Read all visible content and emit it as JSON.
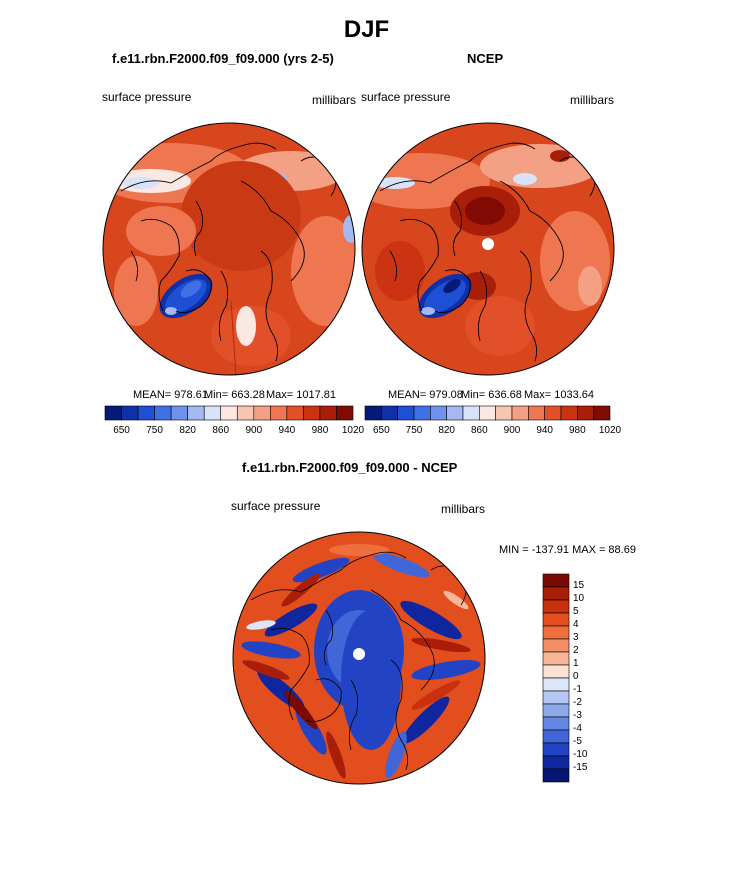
{
  "figure": {
    "title": "DJF"
  },
  "panels": [
    {
      "title": "f.e11.rbn.F2000.f09_f09.000 (yrs 2-5)",
      "variable": "surface pressure",
      "units": "millibars",
      "stats": {
        "mean": "MEAN= 978.61",
        "min": "Min= 663.28",
        "max": "Max= 1017.81"
      }
    },
    {
      "title": "NCEP",
      "variable": "surface pressure",
      "units": "millibars",
      "stats": {
        "mean": "MEAN= 979.08",
        "min": "Min= 636.68",
        "max": "Max= 1033.64"
      }
    }
  ],
  "colorbar_horizontal": {
    "tick_labels": [
      "650",
      "750",
      "820",
      "860",
      "900",
      "940",
      "980",
      "1020"
    ],
    "colors": [
      "#061a78",
      "#1030a8",
      "#1f4fd4",
      "#3f70e6",
      "#6f93ec",
      "#a4b8f2",
      "#d8e2f8",
      "#fbe8e2",
      "#f7c6b2",
      "#f3a084",
      "#ee7650",
      "#e2502a",
      "#cc3312",
      "#a81e08",
      "#820a04"
    ]
  },
  "difference_panel": {
    "title": "f.e11.rbn.F2000.f09_f09.000 - NCEP",
    "variable": "surface pressure",
    "units": "millibars",
    "minmax": "MIN = -137.91 MAX =  88.69"
  },
  "colorbar_vertical": {
    "tick_labels": [
      "15",
      "10",
      "5",
      "4",
      "3",
      "2",
      "1",
      "0",
      "-1",
      "-2",
      "-3",
      "-4",
      "-5",
      "-10",
      "-15"
    ],
    "colors": [
      "#7a0a04",
      "#a81e08",
      "#c8300e",
      "#e24e1e",
      "#ee6e3c",
      "#f49068",
      "#f8b698",
      "#fce2d6",
      "#dde6f8",
      "#b4c6f2",
      "#8ea8ec",
      "#6686e4",
      "#4066d8",
      "#2244c4",
      "#10269e",
      "#061670"
    ]
  }
}
